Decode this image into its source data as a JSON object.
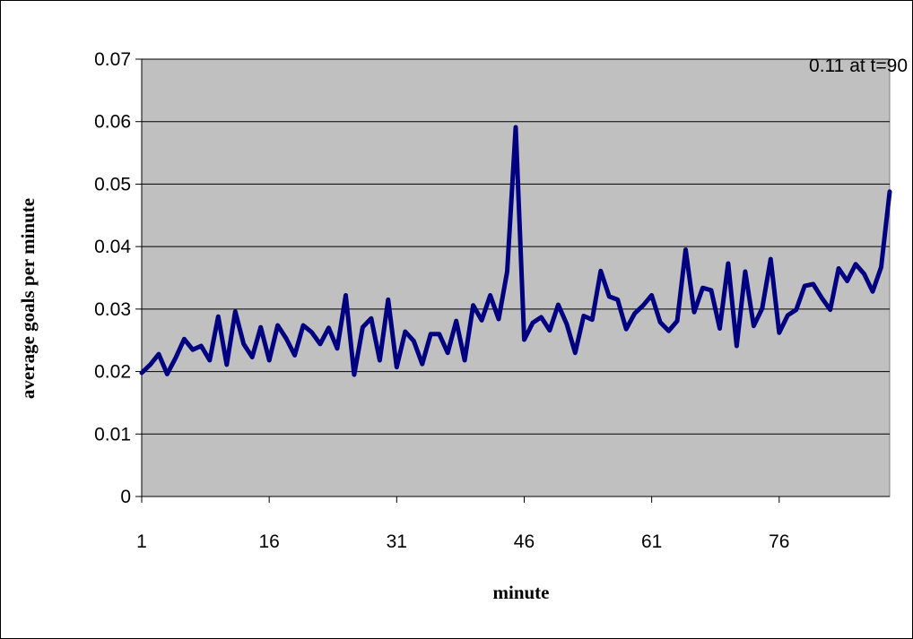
{
  "chart_data": {
    "type": "line",
    "title": "",
    "xlabel": "minute",
    "ylabel": "average goals per minute",
    "annotation": "0.11 at t=90",
    "ylim": [
      0,
      0.07
    ],
    "yticks": [
      "0",
      "0.01",
      "0.02",
      "0.03",
      "0.04",
      "0.05",
      "0.06",
      "0.07"
    ],
    "xticks": [
      "1",
      "16",
      "31",
      "46",
      "61",
      "76"
    ],
    "xlim": [
      1,
      89
    ],
    "grid": true,
    "legend": "none",
    "colors": {
      "line": "#000080",
      "plot_background": "#c0c0c0",
      "gridline": "#000000"
    },
    "series": [
      {
        "x": [
          1,
          2,
          3,
          4,
          5,
          6,
          7,
          8,
          9,
          10,
          11,
          12,
          13,
          14,
          15,
          16,
          17,
          18,
          19,
          20,
          21,
          22,
          23,
          24,
          25,
          26,
          27,
          28,
          29,
          30,
          31,
          32,
          33,
          34,
          35,
          36,
          37,
          38,
          39,
          40,
          41,
          42,
          43,
          44,
          45,
          46,
          47,
          48,
          49,
          50,
          51,
          52,
          53,
          54,
          55,
          56,
          57,
          58,
          59,
          60,
          61,
          62,
          63,
          64,
          65,
          66,
          67,
          68,
          69,
          70,
          71,
          72,
          73,
          74,
          75,
          76,
          77,
          78,
          79,
          80,
          81,
          82,
          83,
          84,
          85,
          86,
          87,
          88,
          89
        ],
        "values": [
          0.0198,
          0.0211,
          0.0228,
          0.0196,
          0.0222,
          0.0252,
          0.0235,
          0.0241,
          0.0218,
          0.0288,
          0.0211,
          0.0296,
          0.0244,
          0.0223,
          0.0271,
          0.0218,
          0.0274,
          0.0253,
          0.0226,
          0.0274,
          0.0263,
          0.0244,
          0.027,
          0.0237,
          0.0322,
          0.0195,
          0.0271,
          0.0285,
          0.0218,
          0.0315,
          0.0207,
          0.0264,
          0.0249,
          0.0212,
          0.026,
          0.026,
          0.023,
          0.0281,
          0.0218,
          0.0306,
          0.0282,
          0.0322,
          0.0284,
          0.036,
          0.0591,
          0.0251,
          0.0278,
          0.0287,
          0.0266,
          0.0307,
          0.0276,
          0.023,
          0.0289,
          0.0283,
          0.0361,
          0.032,
          0.0315,
          0.0268,
          0.0293,
          0.0306,
          0.0322,
          0.0279,
          0.0265,
          0.0281,
          0.0395,
          0.0295,
          0.0334,
          0.033,
          0.0269,
          0.0373,
          0.0241,
          0.036,
          0.0273,
          0.0301,
          0.038,
          0.0262,
          0.029,
          0.0299,
          0.0337,
          0.034,
          0.0318,
          0.0299,
          0.0365,
          0.0345,
          0.0372,
          0.0356,
          0.0328,
          0.0367,
          0.0488
        ]
      }
    ]
  }
}
